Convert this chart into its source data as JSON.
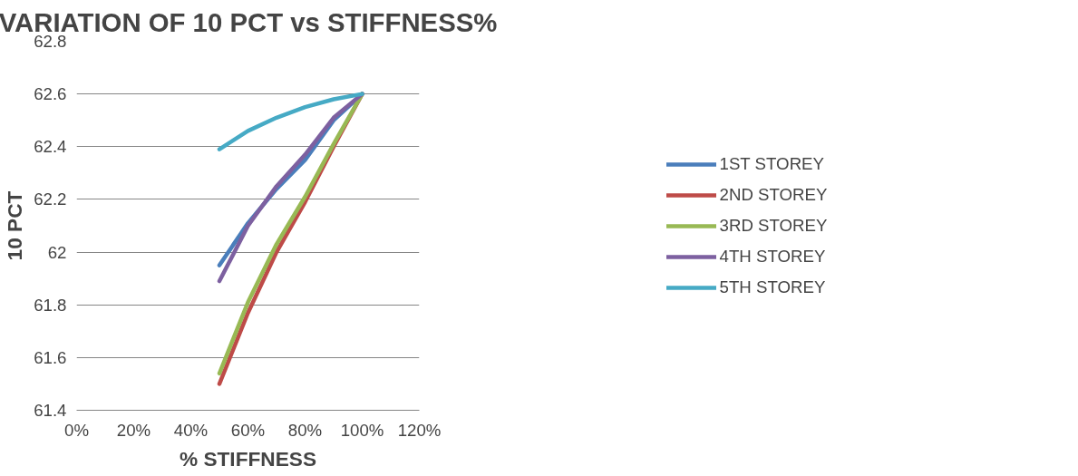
{
  "chart_data": {
    "type": "line",
    "title": "VARIATION OF 10 PCT vs STIFFNESS%",
    "xlabel": "% STIFFNESS",
    "ylabel": "10 PCT",
    "x": [
      50,
      60,
      70,
      80,
      90,
      100
    ],
    "series": [
      {
        "name": "1ST STOREY",
        "color": "#4a7ebb",
        "values": [
          61.95,
          62.11,
          62.24,
          62.35,
          62.5,
          62.6
        ]
      },
      {
        "name": "2ND STOREY",
        "color": "#be4b48",
        "values": [
          61.5,
          61.77,
          62.0,
          62.19,
          62.4,
          62.6
        ]
      },
      {
        "name": "3RD STOREY",
        "color": "#98b954",
        "values": [
          61.54,
          61.81,
          62.03,
          62.21,
          62.41,
          62.6
        ]
      },
      {
        "name": "4TH STOREY",
        "color": "#7d60a0",
        "values": [
          61.89,
          62.1,
          62.25,
          62.37,
          62.51,
          62.6
        ]
      },
      {
        "name": "5TH STOREY",
        "color": "#46aac5",
        "values": [
          62.39,
          62.46,
          62.51,
          62.55,
          62.58,
          62.6
        ]
      }
    ],
    "xlim": [
      0,
      120
    ],
    "xticks": [
      {
        "value": 0,
        "label": "0%"
      },
      {
        "value": 20,
        "label": "20%"
      },
      {
        "value": 40,
        "label": "40%"
      },
      {
        "value": 60,
        "label": "60%"
      },
      {
        "value": 80,
        "label": "80%"
      },
      {
        "value": 100,
        "label": "100%"
      },
      {
        "value": 120,
        "label": "120%"
      }
    ],
    "ylim": [
      61.4,
      62.8
    ],
    "yticks": [
      61.4,
      61.6,
      61.8,
      62,
      62.2,
      62.4,
      62.6,
      62.8
    ],
    "grid": "y",
    "legend": "right",
    "marker": "none",
    "line_style": "solid"
  }
}
